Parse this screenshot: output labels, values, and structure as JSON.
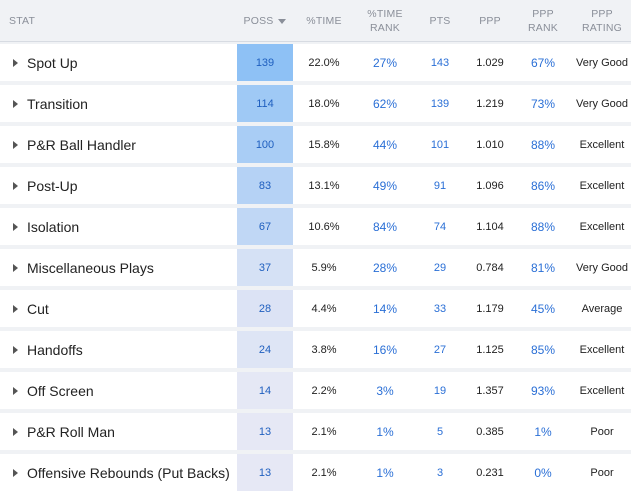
{
  "header": {
    "stat": "STAT",
    "poss": "POSS",
    "pct_time": "%TIME",
    "pct_time_rank_l1": "%TIME",
    "pct_time_rank_l2": "RANK",
    "pts": "PTS",
    "ppp": "PPP",
    "ppp_rank_l1": "PPP",
    "ppp_rank_l2": "RANK",
    "ppp_rating_l1": "PPP",
    "ppp_rating_l2": "RATING",
    "sort_icon": "sort-descending-icon"
  },
  "colors": {
    "poss_scale_low": "#e6e8f5",
    "poss_scale_high": "#8ec1f5",
    "link_blue": "#2a6fd6"
  },
  "rows": [
    {
      "stat": "Spot Up",
      "poss": "139",
      "pct_time": "22.0%",
      "pct_time_rank": "27%",
      "pts": "143",
      "ppp": "1.029",
      "ppp_rank": "67%",
      "ppp_rating": "Very Good"
    },
    {
      "stat": "Transition",
      "poss": "114",
      "pct_time": "18.0%",
      "pct_time_rank": "62%",
      "pts": "139",
      "ppp": "1.219",
      "ppp_rank": "73%",
      "ppp_rating": "Very Good"
    },
    {
      "stat": "P&R Ball Handler",
      "poss": "100",
      "pct_time": "15.8%",
      "pct_time_rank": "44%",
      "pts": "101",
      "ppp": "1.010",
      "ppp_rank": "88%",
      "ppp_rating": "Excellent"
    },
    {
      "stat": "Post-Up",
      "poss": "83",
      "pct_time": "13.1%",
      "pct_time_rank": "49%",
      "pts": "91",
      "ppp": "1.096",
      "ppp_rank": "86%",
      "ppp_rating": "Excellent"
    },
    {
      "stat": "Isolation",
      "poss": "67",
      "pct_time": "10.6%",
      "pct_time_rank": "84%",
      "pts": "74",
      "ppp": "1.104",
      "ppp_rank": "88%",
      "ppp_rating": "Excellent"
    },
    {
      "stat": "Miscellaneous Plays",
      "poss": "37",
      "pct_time": "5.9%",
      "pct_time_rank": "28%",
      "pts": "29",
      "ppp": "0.784",
      "ppp_rank": "81%",
      "ppp_rating": "Very Good"
    },
    {
      "stat": "Cut",
      "poss": "28",
      "pct_time": "4.4%",
      "pct_time_rank": "14%",
      "pts": "33",
      "ppp": "1.179",
      "ppp_rank": "45%",
      "ppp_rating": "Average"
    },
    {
      "stat": "Handoffs",
      "poss": "24",
      "pct_time": "3.8%",
      "pct_time_rank": "16%",
      "pts": "27",
      "ppp": "1.125",
      "ppp_rank": "85%",
      "ppp_rating": "Excellent"
    },
    {
      "stat": "Off Screen",
      "poss": "14",
      "pct_time": "2.2%",
      "pct_time_rank": "3%",
      "pts": "19",
      "ppp": "1.357",
      "ppp_rank": "93%",
      "ppp_rating": "Excellent"
    },
    {
      "stat": "P&R Roll Man",
      "poss": "13",
      "pct_time": "2.1%",
      "pct_time_rank": "1%",
      "pts": "5",
      "ppp": "0.385",
      "ppp_rank": "1%",
      "ppp_rating": "Poor"
    },
    {
      "stat": "Offensive Rebounds (Put Backs)",
      "poss": "13",
      "pct_time": "2.1%",
      "pct_time_rank": "1%",
      "pts": "3",
      "ppp": "0.231",
      "ppp_rank": "0%",
      "ppp_rating": "Poor"
    }
  ]
}
